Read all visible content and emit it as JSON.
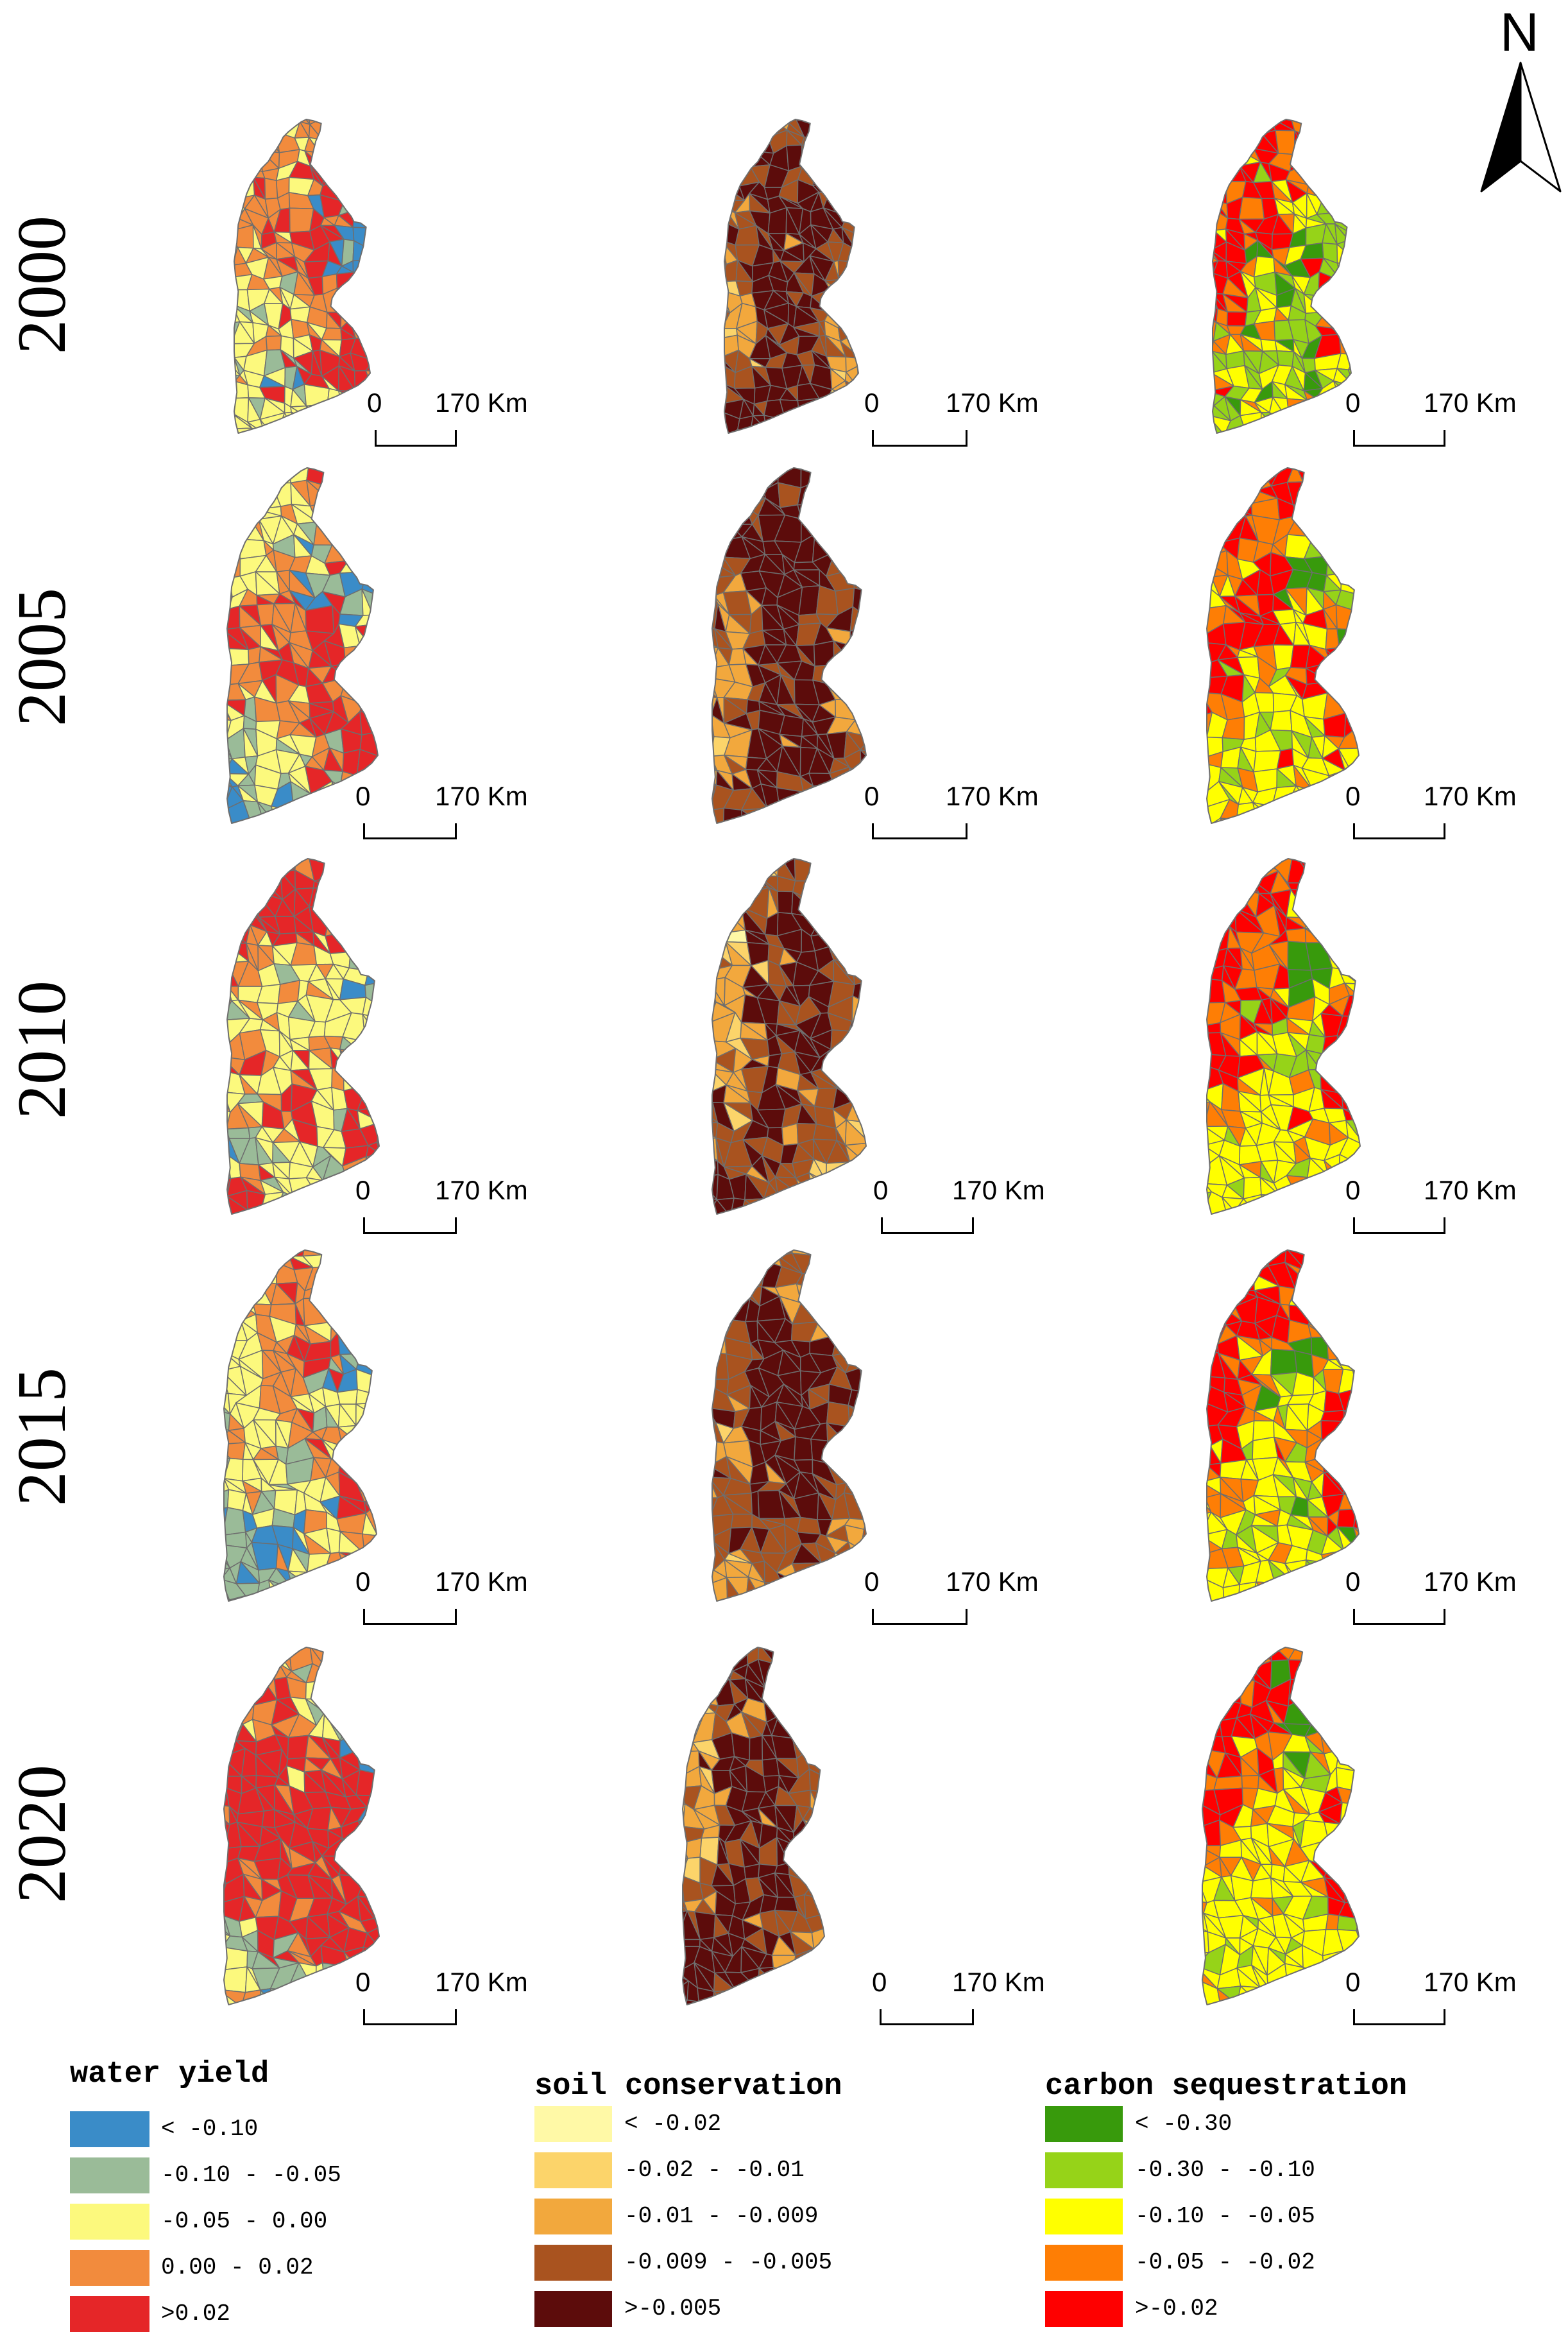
{
  "north_label": "N",
  "years": [
    "2000",
    "2005",
    "2010",
    "2015",
    "2020"
  ],
  "scale_bar": {
    "start": "0",
    "end": "170 Km"
  },
  "legends": [
    {
      "title": "water yield",
      "items": [
        {
          "label": "< -0.10",
          "color": "#3a8cc8"
        },
        {
          "label": "-0.10 - -0.05",
          "color": "#9abb98"
        },
        {
          "label": "-0.05 - 0.00",
          "color": "#fcf97d"
        },
        {
          "label": "0.00 - 0.02",
          "color": "#f28b3d"
        },
        {
          "label": ">0.02",
          "color": "#e52628"
        }
      ]
    },
    {
      "title": "soil conservation",
      "items": [
        {
          "label": "< -0.02",
          "color": "#fff9a6"
        },
        {
          "label": "-0.02 - -0.01",
          "color": "#fcd46a"
        },
        {
          "label": "-0.01 - -0.009",
          "color": "#f2a83d"
        },
        {
          "label": "-0.009 - -0.005",
          "color": "#a9531f"
        },
        {
          "label": ">-0.005",
          "color": "#5c0c0b"
        }
      ]
    },
    {
      "title": "carbon sequestration",
      "items": [
        {
          "label": "< -0.30",
          "color": "#389a0c"
        },
        {
          "label": "-0.30 - -0.10",
          "color": "#96d318"
        },
        {
          "label": "-0.10 - -0.05",
          "color": "#ffff00"
        },
        {
          "label": "-0.05 - -0.02",
          "color": "#fe7e05"
        },
        {
          "label": ">-0.02",
          "color": "#fe0000"
        }
      ]
    }
  ]
}
